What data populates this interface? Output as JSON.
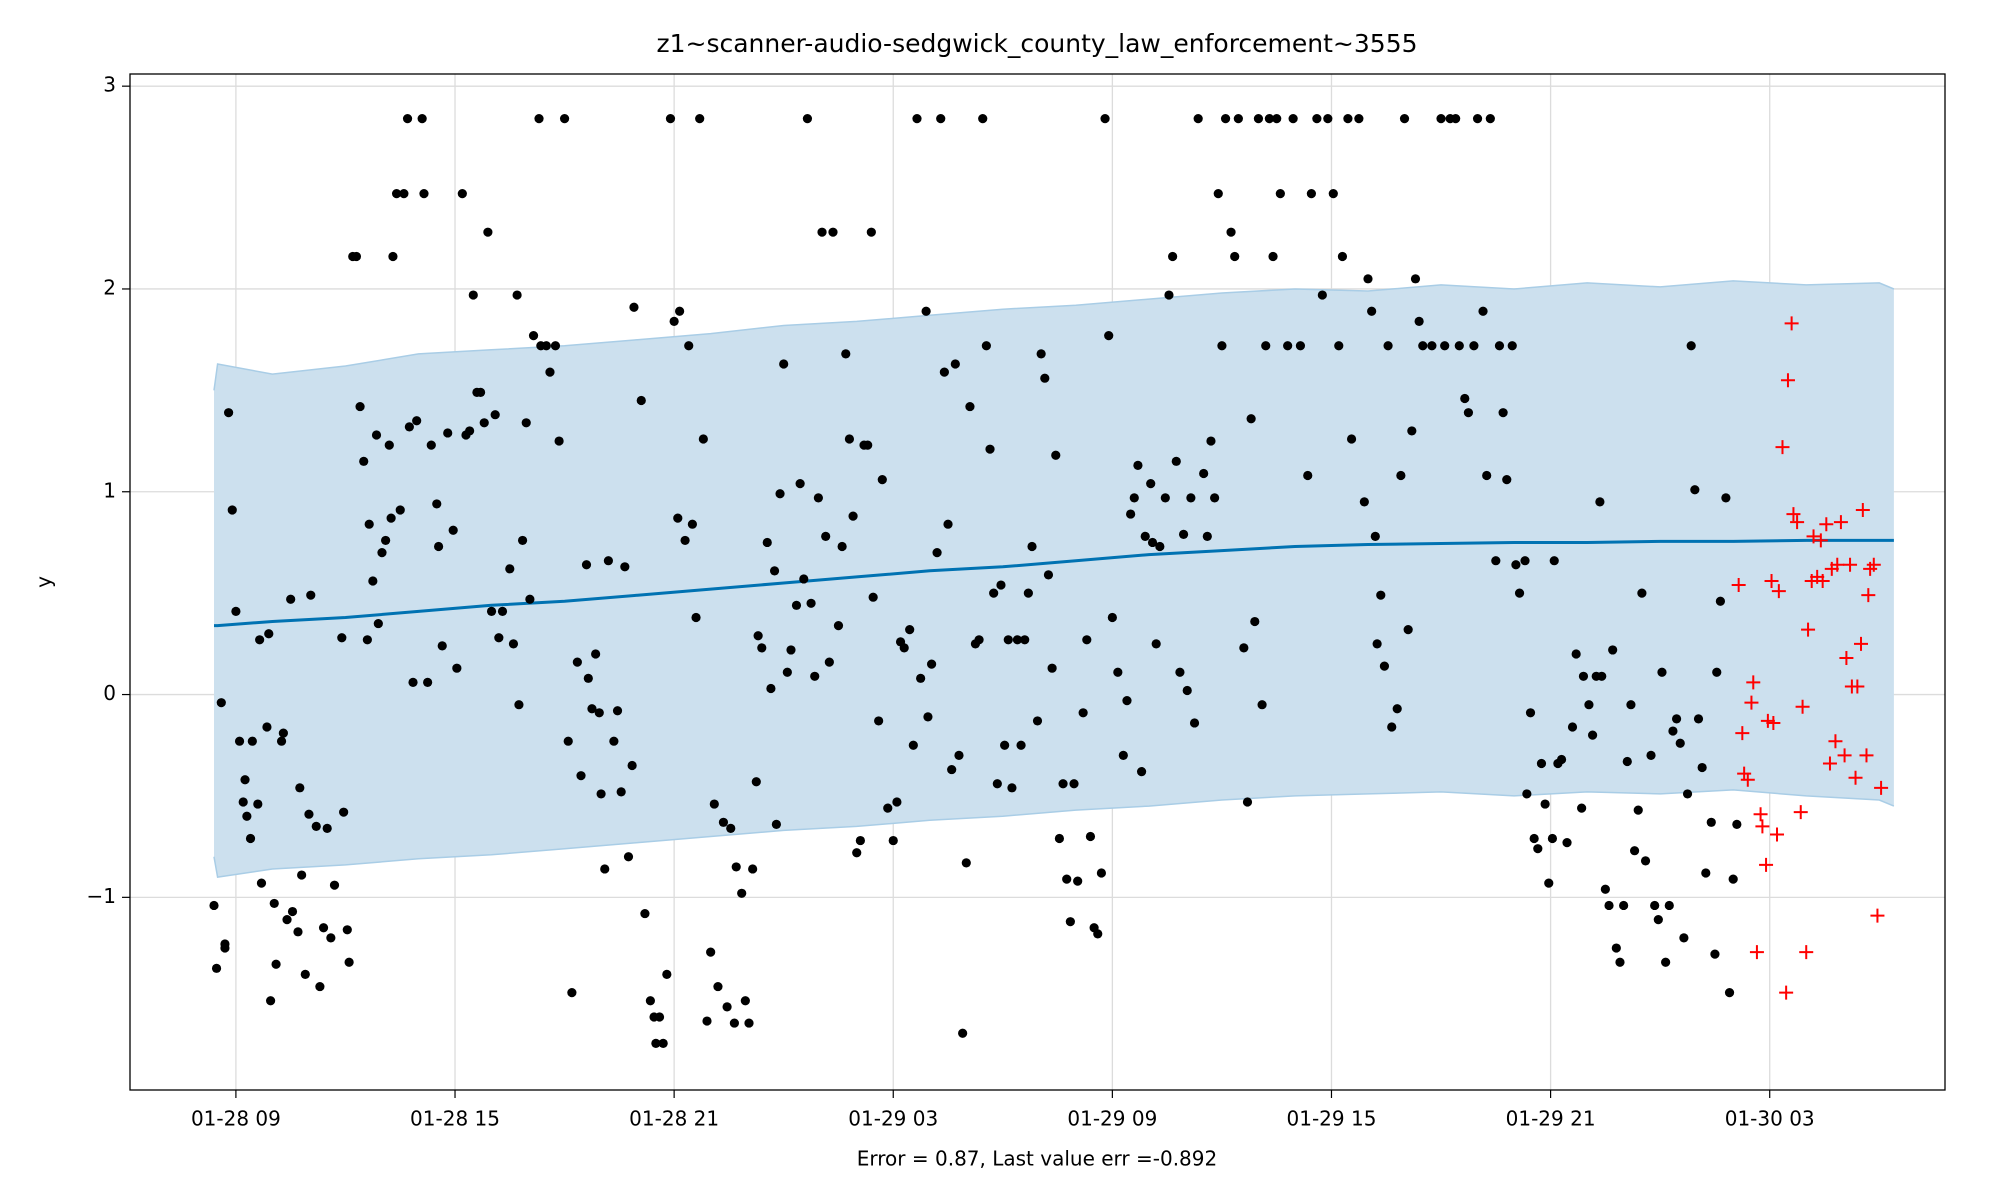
{
  "chart_data": {
    "type": "forecast",
    "title": "z1~scanner-audio-sedgwick_county_law_enforcement~3555",
    "xlabel": "Error = 0.87, Last value err =-0.892",
    "ylabel": "y",
    "grid": true,
    "xlim": [
      6.1,
      55.8
    ],
    "ylim": [
      -1.95,
      3.06
    ],
    "xticks": [
      {
        "value": 9,
        "label": "01-28 09"
      },
      {
        "value": 15,
        "label": "01-28 15"
      },
      {
        "value": 21,
        "label": "01-28 21"
      },
      {
        "value": 27,
        "label": "01-29 03"
      },
      {
        "value": 33,
        "label": "01-29 09"
      },
      {
        "value": 39,
        "label": "01-29 15"
      },
      {
        "value": 45,
        "label": "01-29 21"
      },
      {
        "value": 51,
        "label": "01-30 03"
      }
    ],
    "yticks": [
      {
        "value": -1,
        "label": "−1"
      },
      0,
      1,
      2,
      3
    ],
    "forecast": {
      "color": "#0072b2",
      "band_color": "#cce0ee",
      "band_edge_color": "#a9cde6",
      "x": [
        8.4,
        8.5,
        10,
        12,
        14,
        16,
        18,
        20,
        22,
        24,
        26,
        28,
        30,
        32,
        34,
        36,
        38,
        40,
        42,
        44,
        46,
        48,
        50,
        52,
        54,
        54.4
      ],
      "values": [
        0.34,
        0.34,
        0.36,
        0.38,
        0.41,
        0.44,
        0.46,
        0.49,
        0.52,
        0.55,
        0.58,
        0.61,
        0.63,
        0.66,
        0.69,
        0.71,
        0.73,
        0.74,
        0.745,
        0.75,
        0.75,
        0.755,
        0.755,
        0.76,
        0.76,
        0.76
      ],
      "upper": [
        1.5,
        1.63,
        1.58,
        1.62,
        1.68,
        1.7,
        1.72,
        1.75,
        1.78,
        1.82,
        1.84,
        1.87,
        1.9,
        1.92,
        1.95,
        1.98,
        2.0,
        1.99,
        2.02,
        2.0,
        2.03,
        2.01,
        2.04,
        2.02,
        2.03,
        2.0
      ],
      "lower": [
        -0.8,
        -0.9,
        -0.86,
        -0.84,
        -0.81,
        -0.79,
        -0.76,
        -0.73,
        -0.7,
        -0.67,
        -0.65,
        -0.62,
        -0.6,
        -0.57,
        -0.55,
        -0.52,
        -0.5,
        -0.49,
        -0.48,
        -0.5,
        -0.48,
        -0.49,
        -0.47,
        -0.5,
        -0.52,
        -0.55
      ]
    },
    "observed": {
      "color": "#000000",
      "marker": "dot",
      "x": [
        8.4,
        8.47,
        8.6,
        8.7,
        8.7,
        8.8,
        8.9,
        9.0,
        9.1,
        9.2,
        9.25,
        9.3,
        9.4,
        9.45,
        9.6,
        9.65,
        9.7,
        9.85,
        9.9,
        9.95,
        10.05,
        10.1,
        10.25,
        10.3,
        10.4,
        10.5,
        10.55,
        10.7,
        10.75,
        10.8,
        10.9,
        11.0,
        11.05,
        11.2,
        11.3,
        11.4,
        11.5,
        11.6,
        11.7,
        11.9,
        11.95,
        12.05,
        12.1,
        12.2,
        12.3,
        12.4,
        12.5,
        12.6,
        12.65,
        12.75,
        12.85,
        12.9,
        13.0,
        13.1,
        13.2,
        13.25,
        13.3,
        13.4,
        13.5,
        13.6,
        13.7,
        13.75,
        13.85,
        13.95,
        14.1,
        14.15,
        14.25,
        14.35,
        14.5,
        14.55,
        14.65,
        14.8,
        14.95,
        15.05,
        15.2,
        15.3,
        15.4,
        15.5,
        15.6,
        15.7,
        15.8,
        15.9,
        16.0,
        16.1,
        16.2,
        16.3,
        16.5,
        16.6,
        16.7,
        16.75,
        16.85,
        16.95,
        17.05,
        17.15,
        17.3,
        17.35,
        17.5,
        17.6,
        17.75,
        17.85,
        18.0,
        18.1,
        18.2,
        18.35,
        18.45,
        18.6,
        18.65,
        18.75,
        18.85,
        18.95,
        19.0,
        19.1,
        19.2,
        19.35,
        19.45,
        19.55,
        19.65,
        19.75,
        19.85,
        19.9,
        20.1,
        20.2,
        20.35,
        20.45,
        20.5,
        20.6,
        20.7,
        20.8,
        20.9,
        21.0,
        21.1,
        21.15,
        21.3,
        21.4,
        21.5,
        21.6,
        21.7,
        21.8,
        21.9,
        22.0,
        22.1,
        22.2,
        22.35,
        22.45,
        22.55,
        22.65,
        22.7,
        22.85,
        22.95,
        23.05,
        23.15,
        23.25,
        23.3,
        23.4,
        23.55,
        23.65,
        23.75,
        23.8,
        23.9,
        24.0,
        24.1,
        24.2,
        24.35,
        24.45,
        24.55,
        24.65,
        24.75,
        24.85,
        24.95,
        25.05,
        25.15,
        25.25,
        25.35,
        25.5,
        25.6,
        25.7,
        25.8,
        25.9,
        26.0,
        26.1,
        26.2,
        26.3,
        26.4,
        26.45,
        26.6,
        26.7,
        26.85,
        27.0,
        27.1,
        27.2,
        27.3,
        27.45,
        27.55,
        27.65,
        27.75,
        27.9,
        27.95,
        28.05,
        28.2,
        28.3,
        28.4,
        28.5,
        28.6,
        28.7,
        28.8,
        28.9,
        29.0,
        29.1,
        29.25,
        29.35,
        29.45,
        29.55,
        29.65,
        29.75,
        29.85,
        29.95,
        30.05,
        30.15,
        30.25,
        30.4,
        30.5,
        30.6,
        30.7,
        30.8,
        30.95,
        31.05,
        31.15,
        31.25,
        31.35,
        31.45,
        31.55,
        31.65,
        31.75,
        31.85,
        31.95,
        32.05,
        32.2,
        32.3,
        32.4,
        32.5,
        32.6,
        32.7,
        32.8,
        32.9,
        33.0,
        33.15,
        33.3,
        33.4,
        33.5,
        33.6,
        33.7,
        33.8,
        33.9,
        34.05,
        34.1,
        34.2,
        34.3,
        34.45,
        34.55,
        34.65,
        34.75,
        34.85,
        34.95,
        35.05,
        35.15,
        35.25,
        35.35,
        35.5,
        35.6,
        35.7,
        35.8,
        35.9,
        36.0,
        36.1,
        36.25,
        36.35,
        36.45,
        36.6,
        36.7,
        36.8,
        36.9,
        37.0,
        37.1,
        37.2,
        37.3,
        37.4,
        37.5,
        37.6,
        37.8,
        37.95,
        38.15,
        38.35,
        38.45,
        38.6,
        38.75,
        38.9,
        39.05,
        39.2,
        39.3,
        39.45,
        39.55,
        39.75,
        39.9,
        40.0,
        40.1,
        40.2,
        40.25,
        40.35,
        40.45,
        40.55,
        40.65,
        40.8,
        40.9,
        41.0,
        41.1,
        41.2,
        41.3,
        41.4,
        41.5,
        41.75,
        42.0,
        42.1,
        42.25,
        42.4,
        42.5,
        42.65,
        42.75,
        42.9,
        43.0,
        43.15,
        43.25,
        43.35,
        43.5,
        43.6,
        43.7,
        43.8,
        43.95,
        44.05,
        44.15,
        44.3,
        44.35,
        44.45,
        44.55,
        44.65,
        44.75,
        44.85,
        44.95,
        45.05,
        45.1,
        45.2,
        45.3,
        45.45,
        45.6,
        45.7,
        45.85,
        45.9,
        46.05,
        46.15,
        46.25,
        46.35,
        46.4,
        46.5,
        46.6,
        46.7,
        46.8,
        46.9,
        47.0,
        47.1,
        47.2,
        47.3,
        47.4,
        47.5,
        47.6,
        47.75,
        47.85,
        47.95,
        48.05,
        48.15,
        48.25,
        48.35,
        48.45,
        48.55,
        48.65,
        48.75,
        48.85,
        48.95,
        49.05,
        49.15,
        49.25,
        49.4,
        49.5,
        49.55,
        49.65,
        49.8,
        49.9,
        50.0,
        50.1
      ],
      "values": [
        -1.04,
        -1.35,
        -0.04,
        -1.25,
        -1.23,
        1.39,
        0.91,
        0.41,
        -0.23,
        -0.53,
        -0.42,
        -0.6,
        -0.71,
        -0.23,
        -0.54,
        0.27,
        -0.93,
        -0.16,
        0.3,
        -1.51,
        -1.03,
        -1.33,
        -0.23,
        -0.19,
        -1.11,
        0.47,
        -1.07,
        -1.17,
        -0.46,
        -0.89,
        -1.38,
        -0.59,
        0.49,
        -0.65,
        -1.44,
        -1.15,
        -0.66,
        -1.2,
        -0.94,
        0.28,
        -0.58,
        -1.16,
        -1.32,
        2.16,
        2.16,
        1.42,
        1.15,
        0.27,
        0.84,
        0.56,
        1.28,
        0.35,
        0.7,
        0.76,
        1.23,
        0.87,
        2.16,
        2.47,
        0.91,
        2.47,
        2.84,
        1.32,
        0.06,
        1.35,
        2.84,
        2.47,
        0.06,
        1.23,
        0.94,
        0.73,
        0.24,
        1.29,
        0.81,
        0.13,
        2.47,
        1.28,
        1.3,
        1.97,
        1.49,
        1.49,
        1.34,
        2.28,
        0.41,
        1.38,
        0.28,
        0.41,
        0.62,
        0.25,
        1.97,
        -0.05,
        0.76,
        1.34,
        0.47,
        1.77,
        2.84,
        1.72,
        1.72,
        1.59,
        1.72,
        1.25,
        2.84,
        -0.23,
        -1.47,
        0.16,
        -0.4,
        0.64,
        0.08,
        -0.07,
        0.2,
        -0.09,
        -0.49,
        -0.86,
        0.66,
        -0.23,
        -0.08,
        -0.48,
        0.63,
        -0.8,
        -0.35,
        1.91,
        1.45,
        -1.08,
        -1.51,
        -1.59,
        -1.72,
        -1.59,
        -1.72,
        -1.38,
        2.84,
        1.84,
        0.87,
        1.89,
        0.76,
        1.72,
        0.84,
        0.38,
        2.84,
        1.26,
        -1.61,
        -1.27,
        -0.54,
        -1.44,
        -0.63,
        -1.54,
        -0.66,
        -1.62,
        -0.85,
        -0.98,
        -1.51,
        -1.62,
        -0.86,
        -0.43,
        0.29,
        0.23,
        0.75,
        0.03,
        0.61,
        -0.64,
        0.99,
        1.63,
        0.11,
        0.22,
        0.44,
        1.04,
        0.57,
        2.84,
        0.45,
        0.09,
        0.97,
        2.28,
        0.78,
        0.16,
        2.28,
        0.34,
        0.73,
        1.68,
        1.26,
        0.88,
        -0.78,
        -0.72,
        1.23,
        1.23,
        2.28,
        0.48,
        -0.13,
        1.06,
        -0.56,
        -0.72,
        -0.53,
        0.26,
        0.23,
        0.32,
        -0.25,
        2.84,
        0.08,
        1.89,
        -0.11,
        0.15,
        0.7,
        2.84,
        1.59,
        0.84,
        -0.37,
        1.63,
        -0.3,
        -1.67,
        -0.83,
        1.42,
        0.25,
        0.27,
        2.84,
        1.72,
        1.21,
        0.5,
        -0.44,
        0.54,
        -0.25,
        0.27,
        -0.46,
        0.27,
        -0.25,
        0.27,
        0.5,
        0.73,
        -0.13,
        1.68,
        1.56,
        0.59,
        0.13,
        1.18,
        -0.71,
        -0.44,
        -0.91,
        -1.12,
        -0.44,
        -0.92,
        -0.09,
        0.27,
        -0.7,
        -1.15,
        -1.18,
        -0.88,
        2.84,
        1.77,
        0.38,
        0.11,
        -0.3,
        -0.03,
        0.89,
        0.97,
        1.13,
        -0.38,
        0.78,
        1.04,
        0.75,
        0.25,
        0.73,
        0.97,
        1.97,
        2.16,
        1.15,
        0.11,
        0.79,
        0.02,
        0.97,
        -0.14,
        2.84,
        1.09,
        0.78,
        1.25,
        0.97,
        2.47,
        1.72,
        2.84,
        2.28,
        2.16,
        2.84,
        0.23,
        -0.53,
        1.36,
        0.36,
        2.84,
        -0.05,
        1.72,
        2.84,
        2.16,
        2.84,
        2.47,
        1.72,
        2.84,
        1.72,
        1.08,
        2.47,
        2.84,
        1.97,
        2.84,
        2.47,
        1.72,
        2.16,
        2.84,
        1.26,
        2.84,
        0.95,
        2.05,
        1.89,
        0.78,
        0.25,
        0.49,
        0.14,
        1.72,
        -0.16,
        -0.07,
        1.08,
        2.84,
        0.32,
        1.3,
        2.05,
        1.84,
        1.72,
        1.72,
        2.84,
        1.72,
        2.84,
        2.84,
        1.72,
        1.46,
        1.39,
        1.72,
        2.84,
        1.89,
        1.08,
        2.84,
        0.66,
        1.72,
        1.39,
        1.06,
        1.72,
        0.64,
        0.5,
        0.66,
        -0.49,
        -0.09,
        -0.71,
        -0.76,
        -0.34,
        -0.54,
        -0.93,
        -0.71,
        0.66,
        -0.34,
        -0.32,
        -0.73,
        -0.16,
        0.2,
        -0.56,
        0.09,
        -0.05,
        -0.2,
        0.09,
        0.95,
        0.09,
        -0.96,
        -1.04,
        0.22,
        -1.25,
        -1.32,
        -1.04,
        -0.33,
        -0.05,
        -0.77,
        -0.57,
        0.5,
        -0.82,
        -0.3,
        -1.04,
        -1.11,
        0.11,
        -1.32,
        -1.04,
        -0.18,
        -0.12,
        -0.24,
        -1.2,
        -0.49,
        1.72,
        1.01,
        -0.12,
        -0.36,
        -0.88,
        -0.63,
        -1.28,
        0.11,
        0.46,
        0.97,
        -1.47,
        -0.91,
        -0.64
      ]
    },
    "future": {
      "color": "#ff0000",
      "marker": "plus",
      "x": [
        50.15,
        50.25,
        50.3,
        50.4,
        50.55,
        50.5,
        50.65,
        50.75,
        50.8,
        50.9,
        50.95,
        51.05,
        51.1,
        51.2,
        51.25,
        51.35,
        51.45,
        51.5,
        51.6,
        51.65,
        51.75,
        51.85,
        51.9,
        52.0,
        52.05,
        52.15,
        52.2,
        52.3,
        52.4,
        52.45,
        52.55,
        52.65,
        52.7,
        52.8,
        52.85,
        52.95,
        53.05,
        53.1,
        53.2,
        53.25,
        53.35,
        53.4,
        53.5,
        53.55,
        53.65,
        53.7,
        53.75,
        53.85,
        53.95,
        54.05
      ],
      "values": [
        0.54,
        -0.19,
        -0.39,
        -0.42,
        0.06,
        -0.04,
        -1.27,
        -0.59,
        -0.65,
        -0.84,
        -0.13,
        0.56,
        -0.14,
        -0.69,
        0.51,
        1.22,
        -1.47,
        1.55,
        1.83,
        0.89,
        0.85,
        -0.58,
        -0.06,
        -1.27,
        0.32,
        0.56,
        0.78,
        0.58,
        0.76,
        0.56,
        0.84,
        -0.34,
        0.62,
        -0.23,
        0.64,
        0.85,
        -0.3,
        0.18,
        0.64,
        0.04,
        -0.41,
        0.04,
        0.25,
        0.91,
        -0.3,
        0.49,
        0.62,
        0.64,
        -1.09,
        -0.46
      ]
    }
  }
}
